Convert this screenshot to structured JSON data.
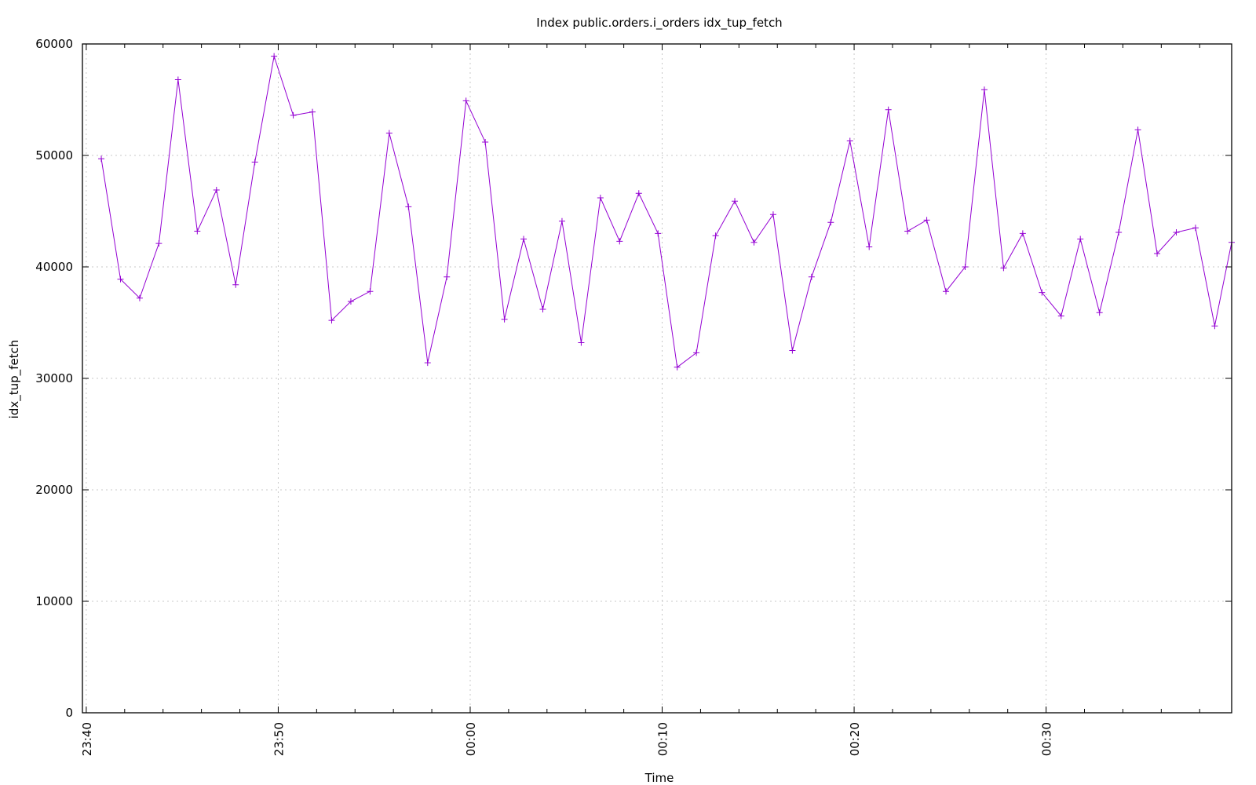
{
  "chart_data": {
    "type": "line",
    "title": "Index public.orders.i_orders idx_tup_fetch",
    "xlabel": "Time",
    "ylabel": "idx_tup_fetch",
    "xlim": [
      "23:39:48",
      "00:39:40"
    ],
    "ylim": [
      0,
      60000
    ],
    "x_ticks": [
      "23:40",
      "23:50",
      "00:00",
      "00:10",
      "00:20",
      "00:30"
    ],
    "y_ticks": [
      0,
      10000,
      20000,
      30000,
      40000,
      50000,
      60000
    ],
    "grid": true,
    "legend": "none",
    "series_color": "#9400d3",
    "marker": "plus",
    "x": [
      "23:40:47",
      "23:41:47",
      "23:42:47",
      "23:43:47",
      "23:44:47",
      "23:45:47",
      "23:46:47",
      "23:47:47",
      "23:48:47",
      "23:49:47",
      "23:50:47",
      "23:51:47",
      "23:52:47",
      "23:53:47",
      "23:54:47",
      "23:55:47",
      "23:56:47",
      "23:57:47",
      "23:58:47",
      "23:59:47",
      "00:00:47",
      "00:01:47",
      "00:02:47",
      "00:03:47",
      "00:04:47",
      "00:05:47",
      "00:06:47",
      "00:07:47",
      "00:08:47",
      "00:09:47",
      "00:10:47",
      "00:11:47",
      "00:12:47",
      "00:13:47",
      "00:14:47",
      "00:15:47",
      "00:16:47",
      "00:17:47",
      "00:18:47",
      "00:19:47",
      "00:20:47",
      "00:21:47",
      "00:22:47",
      "00:23:47",
      "00:24:47",
      "00:25:47",
      "00:26:47",
      "00:27:47",
      "00:28:47",
      "00:29:47",
      "00:30:47",
      "00:31:47",
      "00:32:47",
      "00:33:47",
      "00:34:47",
      "00:35:47",
      "00:36:47",
      "00:37:47",
      "00:38:47",
      "00:39:40"
    ],
    "y": [
      49700,
      38900,
      37200,
      42100,
      56800,
      43200,
      46900,
      38400,
      49400,
      58900,
      53600,
      53900,
      35200,
      36900,
      37800,
      52000,
      45400,
      31400,
      39100,
      54900,
      51200,
      35300,
      42500,
      36200,
      44100,
      33200,
      46200,
      42300,
      46600,
      43000,
      31000,
      32300,
      42800,
      45900,
      42200,
      44700,
      32500,
      39100,
      44000,
      51300,
      41800,
      54100,
      43200,
      44200,
      37800,
      40000,
      55900,
      39900,
      43000,
      37700,
      35600,
      42500,
      35900,
      43100,
      52300,
      41200,
      43100,
      43500,
      34700,
      42200
    ]
  }
}
